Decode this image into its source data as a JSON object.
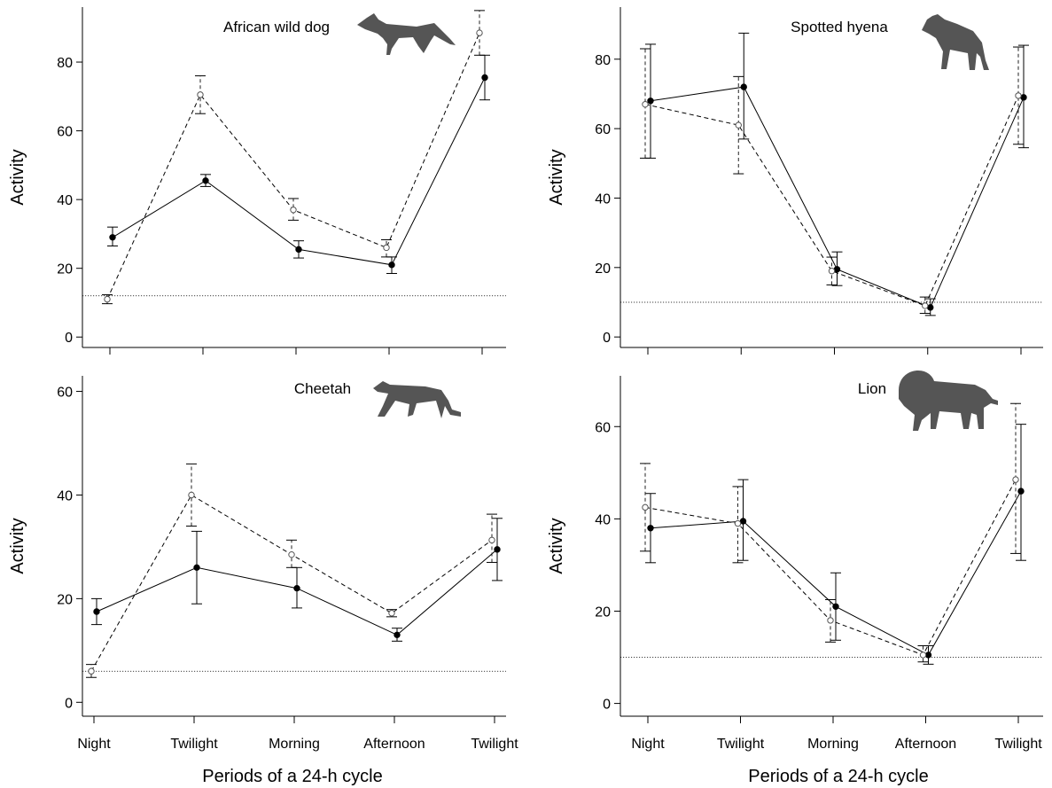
{
  "figure": {
    "xlabel": "Periods of a 24-h cycle"
  },
  "chart_data": [
    {
      "type": "line",
      "title": "African wild dog",
      "icon": "african-wild-dog-silhouette",
      "xlabel": "",
      "ylabel": "Activity",
      "categories": [
        "Night",
        "Twilight",
        "Morning",
        "Afternoon",
        "Twilight"
      ],
      "show_x_tick_labels": false,
      "ylim": [
        -2,
        96
      ],
      "yticks": [
        0,
        20,
        40,
        60,
        80
      ],
      "reference_line": 12,
      "series": [
        {
          "style": "solid",
          "marker": "filled",
          "values": [
            29,
            45.5,
            25.5,
            21,
            75.5
          ],
          "err_low": [
            26.5,
            43.8,
            23,
            18.5,
            69
          ],
          "err_high": [
            32,
            47.3,
            28,
            23.3,
            82
          ]
        },
        {
          "style": "dashed",
          "marker": "open",
          "values": [
            11,
            70.5,
            37,
            26,
            88.5
          ],
          "err_low": [
            9.7,
            65,
            34,
            23.3,
            82
          ],
          "err_high": [
            12.3,
            76,
            40.3,
            28.3,
            95
          ]
        }
      ]
    },
    {
      "type": "line",
      "title": "Spotted hyena",
      "icon": "spotted-hyena-silhouette",
      "xlabel": "",
      "ylabel": "Activity",
      "categories": [
        "Night",
        "Twilight",
        "Morning",
        "Afternoon",
        "Twilight"
      ],
      "show_x_tick_labels": false,
      "ylim": [
        -2,
        95
      ],
      "yticks": [
        0,
        20,
        40,
        60,
        80
      ],
      "reference_line": 10,
      "series": [
        {
          "style": "solid",
          "marker": "filled",
          "values": [
            68,
            72,
            19.5,
            8.5,
            69
          ],
          "err_low": [
            51.5,
            57,
            14.8,
            6.2,
            54.5
          ],
          "err_high": [
            84.3,
            87.5,
            24.5,
            11,
            84
          ]
        },
        {
          "style": "dashed",
          "marker": "open",
          "values": [
            67,
            61,
            19,
            9,
            69.5
          ],
          "err_low": [
            51.5,
            47,
            15,
            6.8,
            55.5
          ],
          "err_high": [
            83,
            75,
            23,
            11.5,
            83.5
          ]
        }
      ]
    },
    {
      "type": "line",
      "title": "Cheetah",
      "icon": "cheetah-silhouette",
      "xlabel": "",
      "ylabel": "Activity",
      "categories": [
        "Night",
        "Twilight",
        "Morning",
        "Afternoon",
        "Twilight"
      ],
      "show_x_tick_labels": true,
      "ylim": [
        -2,
        63
      ],
      "yticks": [
        0,
        20,
        40,
        60
      ],
      "reference_line": 6,
      "series": [
        {
          "style": "solid",
          "marker": "filled",
          "values": [
            17.5,
            26,
            22,
            13,
            29.5
          ],
          "err_low": [
            15,
            19,
            18.2,
            11.8,
            23.5
          ],
          "err_high": [
            20,
            33,
            26,
            14.3,
            35.5
          ]
        },
        {
          "style": "dashed",
          "marker": "open",
          "values": [
            6,
            40,
            28.5,
            17.2,
            31.3
          ],
          "err_low": [
            4.8,
            34,
            26,
            16.5,
            27
          ],
          "err_high": [
            7.3,
            46,
            31.3,
            17.9,
            36.3
          ]
        }
      ]
    },
    {
      "type": "line",
      "title": "Lion",
      "icon": "lion-silhouette",
      "xlabel": "",
      "ylabel": "Activity",
      "categories": [
        "Night",
        "Twilight",
        "Morning",
        "Afternoon",
        "Twilight"
      ],
      "show_x_tick_labels": true,
      "ylim": [
        -2,
        71
      ],
      "yticks": [
        0,
        20,
        40,
        60
      ],
      "reference_line": 10,
      "series": [
        {
          "style": "solid",
          "marker": "filled",
          "values": [
            38,
            39.5,
            21,
            10.5,
            46
          ],
          "err_low": [
            30.5,
            31,
            13.7,
            8.5,
            31
          ],
          "err_high": [
            45.5,
            48.5,
            28.3,
            12.5,
            60.5
          ]
        },
        {
          "style": "dashed",
          "marker": "open",
          "values": [
            42.5,
            39,
            18,
            10.5,
            48.5
          ],
          "err_low": [
            33,
            30.5,
            13.3,
            9,
            32.5
          ],
          "err_high": [
            52,
            47,
            22.5,
            12.5,
            65
          ]
        }
      ]
    }
  ]
}
